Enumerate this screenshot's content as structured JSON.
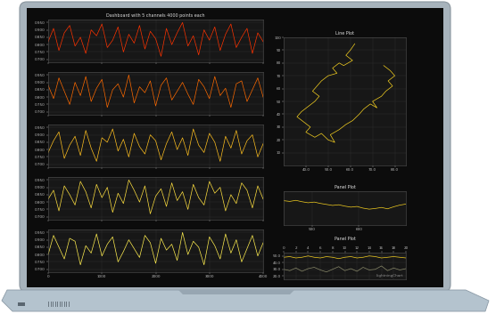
{
  "chart_data": [
    {
      "type": "line",
      "title": "Dashboard with 5 channels 4000 points each",
      "x": [
        0,
        100,
        200,
        300,
        400,
        500,
        600,
        700,
        800,
        900,
        1000,
        1100,
        1200,
        1300,
        1400,
        1500,
        1600,
        1700,
        1800,
        1900,
        2000,
        2100,
        2200,
        2300,
        2400,
        2500,
        2600,
        2700,
        2800,
        2900,
        3000,
        3100,
        3200,
        3300,
        3400,
        3500,
        3600,
        3700,
        3800,
        3900,
        4000
      ],
      "series": [
        {
          "color": "#ff3300",
          "values": [
            0.82,
            0.91,
            0.76,
            0.88,
            0.93,
            0.79,
            0.85,
            0.74,
            0.9,
            0.86,
            0.94,
            0.78,
            0.83,
            0.92,
            0.75,
            0.87,
            0.81,
            0.93,
            0.77,
            0.89,
            0.84,
            0.72,
            0.91,
            0.8,
            0.88,
            0.95,
            0.79,
            0.86,
            0.73,
            0.9,
            0.83,
            0.92,
            0.76,
            0.87,
            0.94,
            0.78,
            0.85,
            0.91,
            0.74,
            0.88,
            0.82
          ]
        }
      ],
      "xlim": [
        0,
        4000
      ],
      "xticks": [
        0,
        1000,
        2000,
        3000,
        4000
      ],
      "ylim": [
        0.68,
        0.97
      ],
      "yticks": [
        {
          "value": 0.7,
          "label": "0.700"
        },
        {
          "value": 0.75,
          "label": "0.750"
        },
        {
          "value": 0.8,
          "label": "0.800"
        },
        {
          "value": 0.85,
          "label": "0.850"
        },
        {
          "value": 0.9,
          "label": "0.900"
        },
        {
          "value": 0.95,
          "label": "0.950"
        }
      ],
      "grid": true,
      "tick_labels": "y"
    },
    {
      "type": "line",
      "x": [
        0,
        100,
        200,
        300,
        400,
        500,
        600,
        700,
        800,
        900,
        1000,
        1100,
        1200,
        1300,
        1400,
        1500,
        1600,
        1700,
        1800,
        1900,
        2000,
        2100,
        2200,
        2300,
        2400,
        2500,
        2600,
        2700,
        2800,
        2900,
        3000,
        3100,
        3200,
        3300,
        3400,
        3500,
        3600,
        3700,
        3800,
        3900,
        4000
      ],
      "series": [
        {
          "color": "#ff6a00",
          "values": [
            0.88,
            0.79,
            0.93,
            0.84,
            0.75,
            0.9,
            0.81,
            0.94,
            0.77,
            0.86,
            0.92,
            0.73,
            0.85,
            0.89,
            0.8,
            0.95,
            0.76,
            0.87,
            0.83,
            0.91,
            0.74,
            0.88,
            0.93,
            0.78,
            0.84,
            0.9,
            0.82,
            0.75,
            0.92,
            0.87,
            0.79,
            0.94,
            0.81,
            0.86,
            0.73,
            0.89,
            0.91,
            0.77,
            0.85,
            0.93,
            0.8
          ]
        }
      ],
      "xlim": [
        0,
        4000
      ],
      "xticks": [
        0,
        1000,
        2000,
        3000,
        4000
      ],
      "ylim": [
        0.68,
        0.97
      ],
      "yticks": [
        {
          "value": 0.7,
          "label": "0.700"
        },
        {
          "value": 0.75,
          "label": "0.750"
        },
        {
          "value": 0.8,
          "label": "0.800"
        },
        {
          "value": 0.85,
          "label": "0.850"
        },
        {
          "value": 0.9,
          "label": "0.900"
        },
        {
          "value": 0.95,
          "label": "0.950"
        }
      ],
      "grid": true,
      "tick_labels": "y"
    },
    {
      "type": "line",
      "x": [
        0,
        100,
        200,
        300,
        400,
        500,
        600,
        700,
        800,
        900,
        1000,
        1100,
        1200,
        1300,
        1400,
        1500,
        1600,
        1700,
        1800,
        1900,
        2000,
        2100,
        2200,
        2300,
        2400,
        2500,
        2600,
        2700,
        2800,
        2900,
        3000,
        3100,
        3200,
        3300,
        3400,
        3500,
        3600,
        3700,
        3800,
        3900,
        4000
      ],
      "series": [
        {
          "color": "#ffc020",
          "values": [
            0.78,
            0.86,
            0.92,
            0.74,
            0.83,
            0.89,
            0.76,
            0.93,
            0.81,
            0.72,
            0.88,
            0.85,
            0.94,
            0.79,
            0.87,
            0.75,
            0.91,
            0.82,
            0.77,
            0.9,
            0.86,
            0.73,
            0.84,
            0.92,
            0.8,
            0.88,
            0.76,
            0.94,
            0.83,
            0.78,
            0.91,
            0.85,
            0.72,
            0.89,
            0.81,
            0.93,
            0.77,
            0.86,
            0.9,
            0.75,
            0.84
          ]
        }
      ],
      "xlim": [
        0,
        4000
      ],
      "xticks": [
        0,
        1000,
        2000,
        3000,
        4000
      ],
      "ylim": [
        0.68,
        0.97
      ],
      "yticks": [
        {
          "value": 0.7,
          "label": "0.700"
        },
        {
          "value": 0.75,
          "label": "0.750"
        },
        {
          "value": 0.8,
          "label": "0.800"
        },
        {
          "value": 0.85,
          "label": "0.850"
        },
        {
          "value": 0.9,
          "label": "0.900"
        },
        {
          "value": 0.95,
          "label": "0.950"
        }
      ],
      "grid": true,
      "tick_labels": "y"
    },
    {
      "type": "line",
      "x": [
        0,
        100,
        200,
        300,
        400,
        500,
        600,
        700,
        800,
        900,
        1000,
        1100,
        1200,
        1300,
        1400,
        1500,
        1600,
        1700,
        1800,
        1900,
        2000,
        2100,
        2200,
        2300,
        2400,
        2500,
        2600,
        2700,
        2800,
        2900,
        3000,
        3100,
        3200,
        3300,
        3400,
        3500,
        3600,
        3700,
        3800,
        3900,
        4000
      ],
      "series": [
        {
          "color": "#ffe040",
          "values": [
            0.82,
            0.88,
            0.74,
            0.91,
            0.85,
            0.78,
            0.94,
            0.87,
            0.76,
            0.92,
            0.83,
            0.9,
            0.73,
            0.86,
            0.79,
            0.95,
            0.88,
            0.8,
            0.91,
            0.72,
            0.84,
            0.89,
            0.77,
            0.93,
            0.81,
            0.87,
            0.75,
            0.92,
            0.83,
            0.78,
            0.94,
            0.86,
            0.9,
            0.74,
            0.85,
            0.79,
            0.93,
            0.88,
            0.76,
            0.91,
            0.82
          ]
        }
      ],
      "xlim": [
        0,
        4000
      ],
      "xticks": [
        0,
        1000,
        2000,
        3000,
        4000
      ],
      "ylim": [
        0.68,
        0.97
      ],
      "yticks": [
        {
          "value": 0.7,
          "label": "0.700"
        },
        {
          "value": 0.75,
          "label": "0.750"
        },
        {
          "value": 0.8,
          "label": "0.800"
        },
        {
          "value": 0.85,
          "label": "0.850"
        },
        {
          "value": 0.9,
          "label": "0.900"
        },
        {
          "value": 0.95,
          "label": "0.950"
        }
      ],
      "grid": true,
      "tick_labels": "y"
    },
    {
      "type": "line",
      "x": [
        0,
        100,
        200,
        300,
        400,
        500,
        600,
        700,
        800,
        900,
        1000,
        1100,
        1200,
        1300,
        1400,
        1500,
        1600,
        1700,
        1800,
        1900,
        2000,
        2100,
        2200,
        2300,
        2400,
        2500,
        2600,
        2700,
        2800,
        2900,
        3000,
        3100,
        3200,
        3300,
        3400,
        3500,
        3600,
        3700,
        3800,
        3900,
        4000
      ],
      "series": [
        {
          "color": "#ffee50",
          "values": [
            0.8,
            0.93,
            0.85,
            0.77,
            0.91,
            0.89,
            0.73,
            0.86,
            0.81,
            0.94,
            0.79,
            0.87,
            0.92,
            0.75,
            0.82,
            0.9,
            0.84,
            0.78,
            0.93,
            0.88,
            0.74,
            0.91,
            0.83,
            0.87,
            0.76,
            0.95,
            0.8,
            0.89,
            0.85,
            0.73,
            0.92,
            0.86,
            0.77,
            0.94,
            0.81,
            0.9,
            0.75,
            0.84,
            0.93,
            0.79,
            0.88
          ]
        }
      ],
      "xlim": [
        0,
        4000
      ],
      "xticks": [
        0,
        1000,
        2000,
        3000,
        4000
      ],
      "ylim": [
        0.68,
        0.97
      ],
      "yticks": [
        {
          "value": 0.7,
          "label": "0.700"
        },
        {
          "value": 0.75,
          "label": "0.750"
        },
        {
          "value": 0.8,
          "label": "0.800"
        },
        {
          "value": 0.85,
          "label": "0.850"
        },
        {
          "value": 0.9,
          "label": "0.900"
        },
        {
          "value": 0.95,
          "label": "0.950"
        }
      ],
      "grid": true
    },
    {
      "type": "line",
      "title": "Line Plot",
      "x": [
        62,
        60,
        58,
        61,
        57,
        55,
        52,
        54,
        50,
        47,
        45,
        43,
        46,
        44,
        41,
        38,
        36,
        39,
        42,
        40,
        44,
        47,
        50,
        53,
        51,
        55,
        58,
        61,
        64,
        66,
        69,
        72,
        70,
        74,
        76,
        79,
        77,
        80,
        78,
        75
      ],
      "series": [
        {
          "color": "#f5d020",
          "values": [
            95,
            90,
            86,
            82,
            78,
            80,
            76,
            72,
            70,
            66,
            62,
            58,
            54,
            50,
            46,
            42,
            38,
            34,
            30,
            26,
            22,
            25,
            20,
            18,
            24,
            28,
            32,
            35,
            40,
            44,
            48,
            45,
            50,
            54,
            58,
            62,
            66,
            70,
            74,
            78
          ]
        }
      ],
      "xlim": [
        30,
        85
      ],
      "xticks": [
        {
          "value": 40,
          "label": "40.0"
        },
        {
          "value": 50,
          "label": "50.0"
        },
        {
          "value": 60,
          "label": "60.0"
        },
        {
          "value": 70,
          "label": "70.0"
        },
        {
          "value": 80,
          "label": "80.0"
        }
      ],
      "ylim": [
        0,
        100
      ],
      "yticks": [
        10,
        20,
        30,
        40,
        50,
        60,
        70,
        80,
        90,
        100
      ],
      "grid": true
    },
    {
      "type": "line",
      "title": "Panel Plot",
      "x": [
        440,
        453,
        466,
        479,
        492,
        505,
        518,
        531,
        544,
        557,
        570,
        583,
        596,
        609,
        622,
        635,
        648,
        661,
        674,
        687,
        700
      ],
      "series": [
        {
          "color": "#f5d020",
          "values": [
            7.2,
            7.0,
            7.3,
            6.9,
            6.6,
            6.8,
            6.4,
            6.1,
            5.8,
            6.0,
            5.6,
            5.3,
            5.5,
            5.0,
            4.7,
            4.9,
            5.2,
            4.8,
            5.4,
            5.9,
            6.2
          ]
        }
      ],
      "xlim": [
        440,
        700
      ],
      "xticks": [
        500,
        600
      ],
      "ylim": [
        0,
        10
      ],
      "grid": true,
      "tick_labels": "x"
    },
    {
      "type": "line",
      "title": "Panel Plot",
      "x": [
        0,
        1,
        2,
        3,
        4,
        5,
        6,
        7,
        8,
        9,
        10,
        11,
        12,
        13,
        14,
        15,
        16,
        17,
        18,
        19,
        20
      ],
      "series": [
        {
          "color": "#f5d020",
          "values": [
            48,
            49,
            47,
            48,
            50,
            48,
            47,
            49,
            48,
            46,
            48,
            49,
            47,
            48,
            50,
            49,
            47,
            48,
            49,
            48,
            47
          ]
        },
        {
          "color": "#8a8a6a",
          "values": [
            30,
            28,
            32,
            27,
            31,
            33,
            29,
            26,
            30,
            34,
            28,
            31,
            27,
            33,
            29,
            30,
            35,
            28,
            32,
            29,
            31
          ]
        }
      ],
      "xlim": [
        0,
        20
      ],
      "xticks": [
        0,
        2,
        4,
        6,
        8,
        10,
        12,
        14,
        16,
        18,
        20
      ],
      "ylim": [
        15,
        55
      ],
      "yticks": [
        {
          "value": 20,
          "label": "20.0"
        },
        {
          "value": 30,
          "label": "30.0"
        },
        {
          "value": 40,
          "label": "40.0"
        },
        {
          "value": 50,
          "label": "50.0"
        }
      ],
      "grid": true,
      "annotations": [
        "LightningChart"
      ]
    }
  ]
}
